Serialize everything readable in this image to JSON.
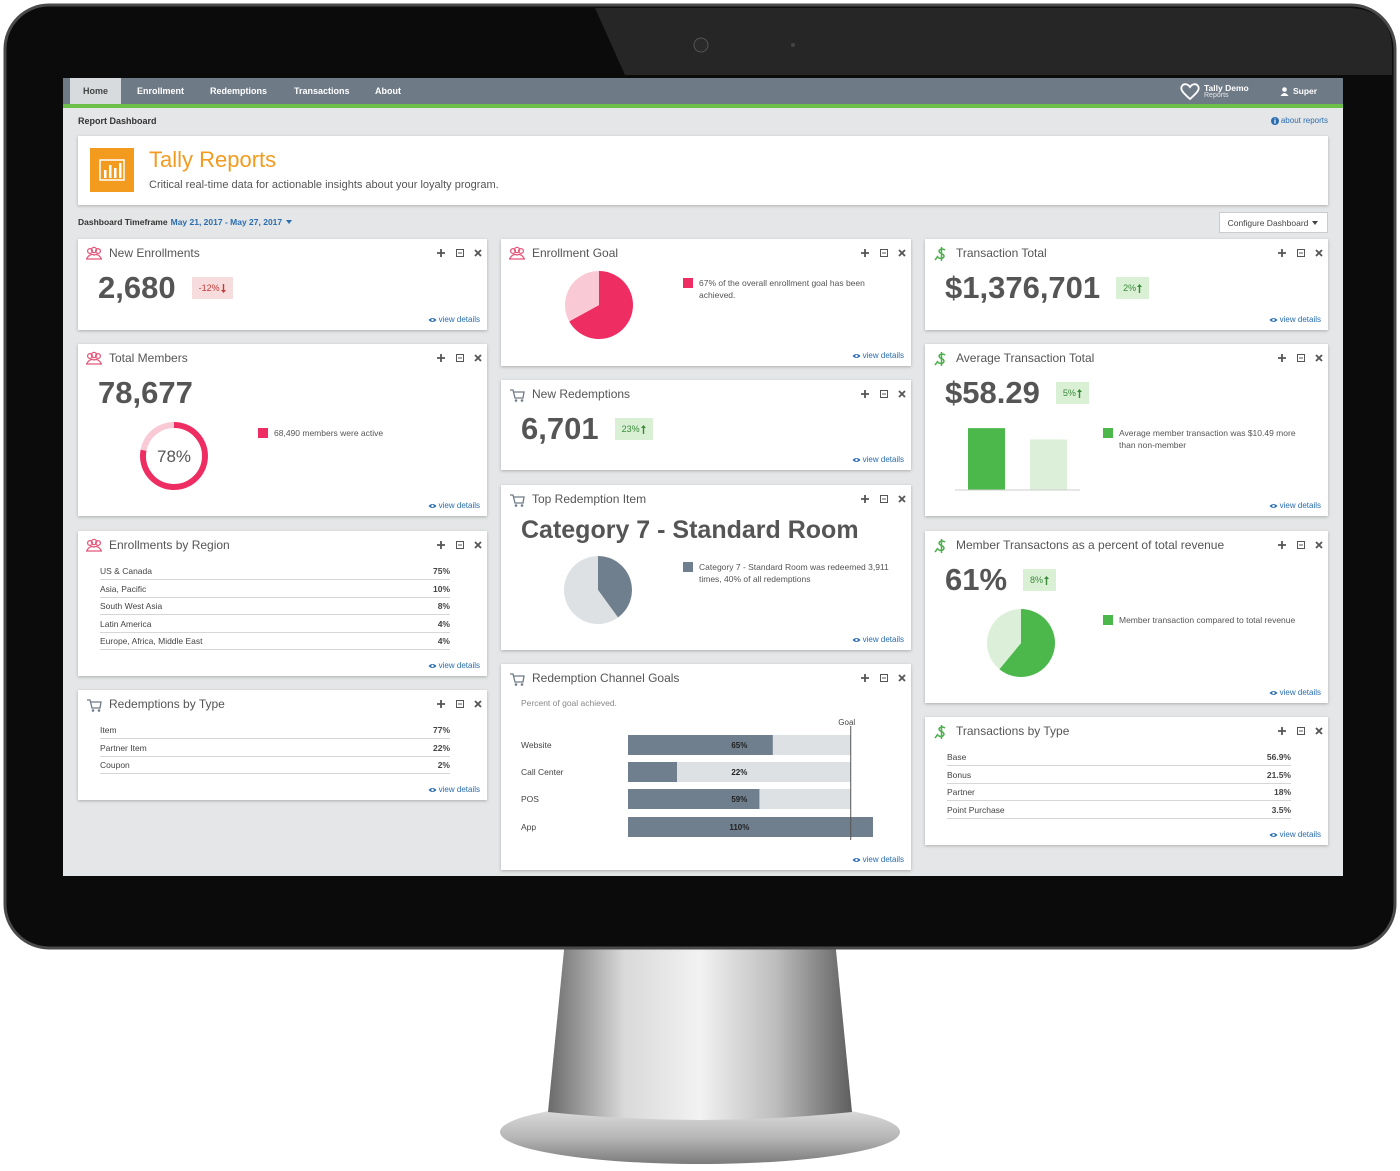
{
  "nav": {
    "tabs": [
      "Home",
      "Enrollment",
      "Redemptions",
      "Transactions",
      "About"
    ],
    "active": 0,
    "brand": "Tally Demo",
    "brand_sub": "Reports",
    "user": "Super"
  },
  "breadcrumb": "Report Dashboard",
  "help_link": "about reports",
  "header": {
    "title": "Tally Reports",
    "subtitle": "Critical real-time data for actionable insights about your loyalty program."
  },
  "timeframe": {
    "label": "Dashboard Timeframe",
    "range": "May 21, 2017 - May 27, 2017"
  },
  "configure_button": "Configure Dashboard",
  "cards": [
    {
      "title": "New Enrollments",
      "icon": "people",
      "value": "2,680",
      "badge": {
        "text": "-12%",
        "trend": "down"
      },
      "link": "view details"
    },
    {
      "title": "Total Members",
      "icon": "people",
      "value": "78,677",
      "chart": {
        "type": "donut",
        "values": [
          78,
          22
        ],
        "value_labels": [
          "78%",
          null
        ],
        "colors": [
          "#ee2d62",
          "#f9c9d6"
        ]
      },
      "legend": "68,490 members were active",
      "link": "view details"
    },
    {
      "title": "Enrollments by Region",
      "icon": "people",
      "table": [
        [
          "US & Canada",
          "75%"
        ],
        [
          "Asia, Pacific",
          "10%"
        ],
        [
          "South West Asia",
          "8%"
        ],
        [
          "Latin America",
          "4%"
        ],
        [
          "Europe, Africa, Middle East",
          "4%"
        ]
      ],
      "link": "view details"
    },
    {
      "title": "Redemptions by Type",
      "icon": "cart",
      "table": [
        [
          "Item",
          "77%"
        ],
        [
          "Partner Item",
          "22%"
        ],
        [
          "Coupon",
          "2%"
        ]
      ],
      "link": "view details"
    },
    {
      "title": "Enrollment Goal",
      "icon": "people",
      "chart": {
        "type": "pie",
        "values": [
          67,
          33
        ],
        "colors": [
          "#ee2d62",
          "#f9c9d6"
        ]
      },
      "legend": "67% of the overall enrollment goal has been achieved.",
      "link": "view details"
    },
    {
      "title": "New Redemptions",
      "icon": "cart",
      "value": "6,701",
      "badge": {
        "text": "23%",
        "trend": "up"
      },
      "link": "view details"
    },
    {
      "title": "Top Redemption Item",
      "icon": "cart",
      "value": "Category 7 - Standard Room",
      "chart": {
        "type": "pie",
        "values": [
          40,
          60
        ],
        "colors": [
          "#6f7f8e",
          "#dde1e4"
        ]
      },
      "legend": "Category 7 - Standard Room was redeemed 3,911 times, 40% of all redemptions",
      "link": "view details"
    },
    {
      "title": "Redemption Channel Goals",
      "icon": "cart",
      "subtitle": "Percent of goal achieved.",
      "chart": {
        "type": "bar",
        "categories": [
          "Website",
          "Call Center",
          "POS",
          "App"
        ],
        "values": [
          65,
          22,
          59,
          110
        ],
        "value_labels": [
          "65%",
          "22%",
          "59%",
          "110%"
        ],
        "xlim": [
          0,
          110
        ],
        "goal": {
          "value": 100,
          "label": "Goal"
        },
        "color": "#6f7f8e",
        "track_color": "#dde1e4"
      },
      "link": "view details"
    },
    {
      "title": "Transaction Total",
      "icon": "dollar",
      "value": "$1,376,701",
      "badge": {
        "text": "2%",
        "trend": "up"
      },
      "link": "view details"
    },
    {
      "title": "Average Transaction Total",
      "icon": "dollar",
      "value": "$58.29",
      "badge": {
        "text": "5%",
        "trend": "up"
      },
      "chart": {
        "type": "column",
        "categories": [
          null,
          null
        ],
        "values": [
          60,
          49
        ],
        "ylim": [
          0,
          64
        ],
        "colors": [
          "#4cb84c",
          "#dcefd8"
        ]
      },
      "legend": "Average member transaction was $10.49 more than non-member",
      "link": "view details"
    },
    {
      "title": "Member Transactons as a percent of total revenue",
      "icon": "dollar",
      "value": "61%",
      "badge": {
        "text": "8%",
        "trend": "up"
      },
      "chart": {
        "type": "pie",
        "values": [
          61,
          39
        ],
        "colors": [
          "#4cb84c",
          "#dcefd8"
        ]
      },
      "legend": "Member transaction compared to total revenue",
      "link": "view details"
    },
    {
      "title": "Transactions by Type",
      "icon": "dollar",
      "table": [
        [
          "Base",
          "56.9%"
        ],
        [
          "Bonus",
          "21.5%"
        ],
        [
          "Partner",
          "18%"
        ],
        [
          "Point Purchase",
          "3.5%"
        ]
      ],
      "link": "view details"
    }
  ]
}
